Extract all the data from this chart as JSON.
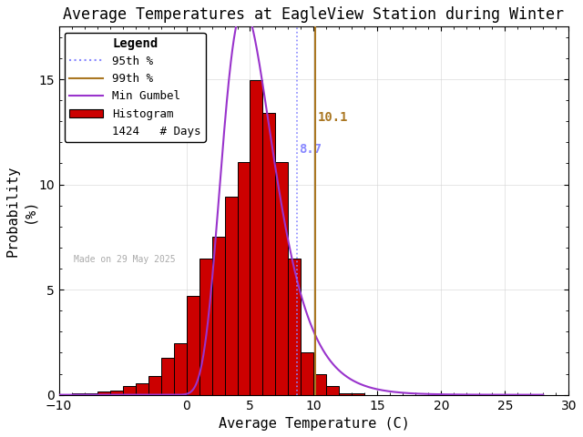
{
  "title": "Average Temperatures at EagleView Station during Winter",
  "xlabel": "Average Temperature (C)",
  "ylabel": "Probability\n(%)",
  "xlim": [
    -10,
    30
  ],
  "ylim": [
    0,
    17.5
  ],
  "xticks": [
    -10,
    0,
    5,
    10,
    15,
    20,
    25,
    30
  ],
  "yticks": [
    0,
    5,
    10,
    15
  ],
  "bg_color": "#ffffff",
  "n_days": 1424,
  "pct95_val": 8.7,
  "pct99_val": 10.1,
  "pct95_color": "#8888ff",
  "pct99_color": "#aa7722",
  "gumbel_color": "#9933cc",
  "hist_color": "#cc0000",
  "hist_edge_color": "#000000",
  "date_text": "Made on 29 May 2025",
  "date_color": "#aaaaaa",
  "bin_edges": [
    -9,
    -8,
    -7,
    -6,
    -5,
    -4,
    -3,
    -2,
    -1,
    0,
    1,
    2,
    3,
    4,
    5,
    6,
    7,
    8,
    9,
    10,
    11,
    12,
    13,
    14
  ],
  "bin_heights": [
    0.07,
    0.07,
    0.14,
    0.21,
    0.42,
    0.56,
    0.91,
    1.76,
    2.46,
    4.71,
    6.46,
    7.53,
    9.41,
    11.06,
    14.96,
    13.41,
    11.06,
    6.46,
    2.04,
    0.98,
    0.42,
    0.07,
    0.07,
    0.0
  ],
  "gumbel_mu": 4.5,
  "gumbel_beta": 2.0,
  "title_fontsize": 12,
  "axis_fontsize": 11,
  "tick_fontsize": 10,
  "legend_fontsize": 9
}
